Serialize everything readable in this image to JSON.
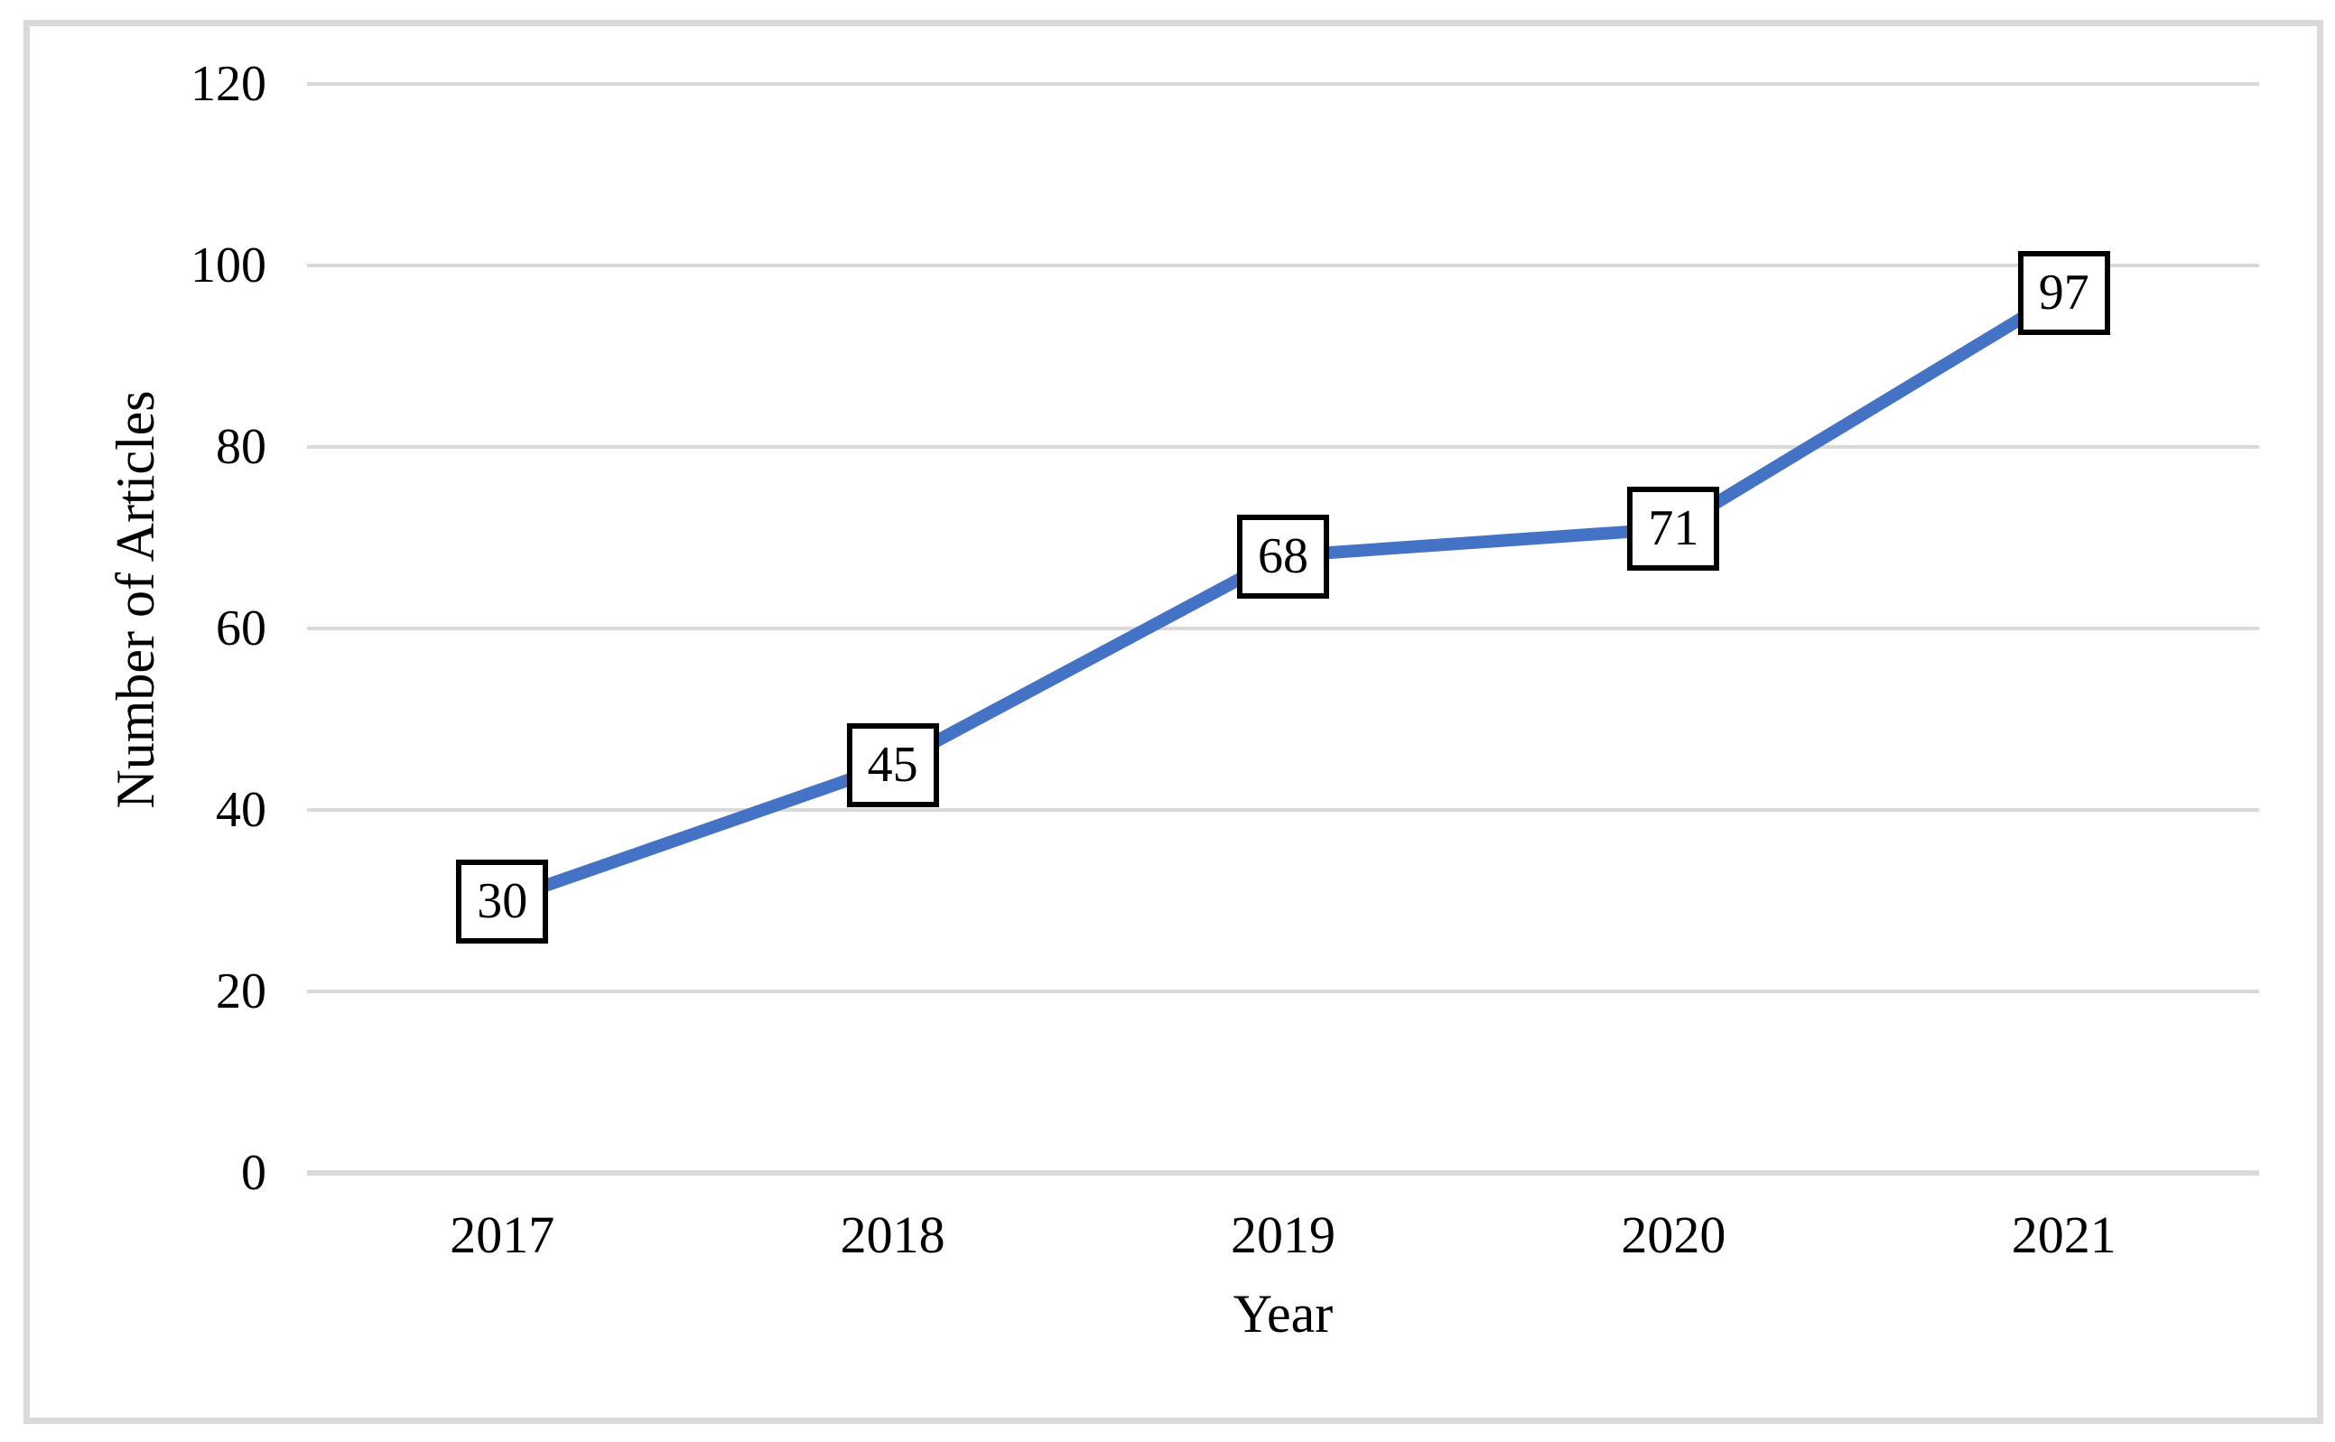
{
  "chart_data": {
    "type": "line",
    "title": "",
    "categories": [
      "2017",
      "2018",
      "2019",
      "2020",
      "2021"
    ],
    "series": [
      {
        "name": "Number of Articles",
        "values": [
          30,
          45,
          68,
          71,
          97
        ]
      }
    ],
    "data_labels": [
      "30",
      "45",
      "68",
      "71",
      "97"
    ],
    "xlabel": "Year",
    "ylabel": "Number of Articles",
    "ylim": [
      0,
      120
    ],
    "y_ticks": [
      0,
      20,
      40,
      60,
      80,
      100,
      120
    ],
    "y_tick_labels": [
      "0",
      "20",
      "40",
      "60",
      "80",
      "100",
      "120"
    ],
    "grid": "horizontal",
    "legend_position": "none",
    "colors": {
      "line": "#4472C4",
      "gridline": "#D9D9D9",
      "frame": "#D9D9D9",
      "text": "#000000",
      "data_label_box_border": "#000000",
      "data_label_box_fill": "#FFFFFF"
    }
  }
}
